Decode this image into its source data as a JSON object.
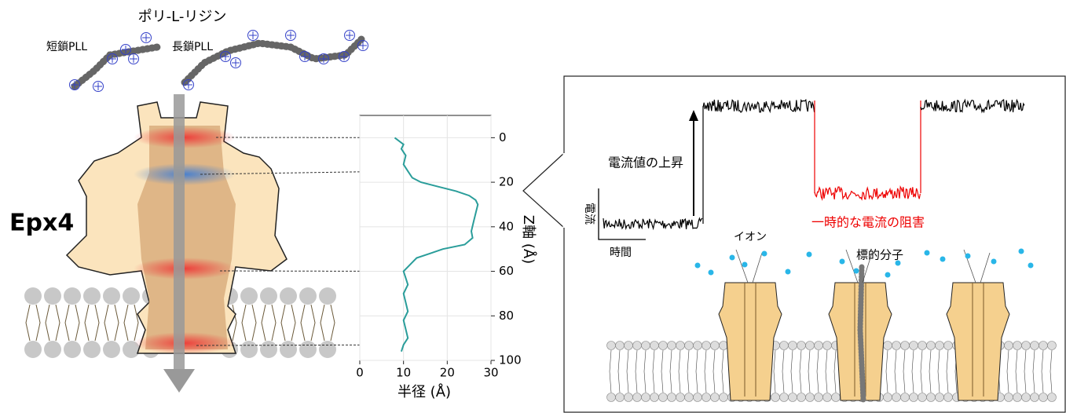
{
  "left": {
    "title": "ポリ-L-リジン",
    "short_label": "短鎖PLL",
    "long_label": "長鎖PLL",
    "protein_label": "Epx4"
  },
  "chart_data": {
    "type": "line",
    "xlabel": "半径 (Å)",
    "ylabel": "Z軸 (Å)",
    "x": [
      8,
      10,
      9.5,
      10.5,
      10,
      11,
      12,
      14,
      18,
      22,
      25,
      26.5,
      27,
      26.5,
      26,
      25.5,
      25.8,
      24,
      19,
      16,
      13,
      12,
      11,
      10,
      10.5,
      11,
      10,
      10.5,
      11,
      10,
      10.5,
      11,
      10,
      9.5
    ],
    "y": [
      0,
      3,
      5,
      8,
      12,
      15,
      18,
      20,
      22,
      24,
      26,
      28,
      30,
      34,
      38,
      42,
      45,
      48,
      50,
      52,
      54,
      56,
      58,
      60,
      63,
      66,
      70,
      74,
      78,
      82,
      86,
      90,
      93,
      96
    ],
    "color": "#2a9d9a",
    "xlim": [
      0,
      30
    ],
    "xticks": [
      0,
      10,
      20,
      30
    ],
    "ylim": [
      -10,
      100
    ],
    "yticks": [
      0,
      20,
      40,
      60,
      80,
      100
    ],
    "y_inverted": true,
    "grid": true
  },
  "right": {
    "rise_label": "電流値の上昇",
    "block_label": "一時的な電流の阻害",
    "current_axis": "電流",
    "time_axis": "時間",
    "ion_label": "イオン",
    "target_label": "標的分子"
  }
}
